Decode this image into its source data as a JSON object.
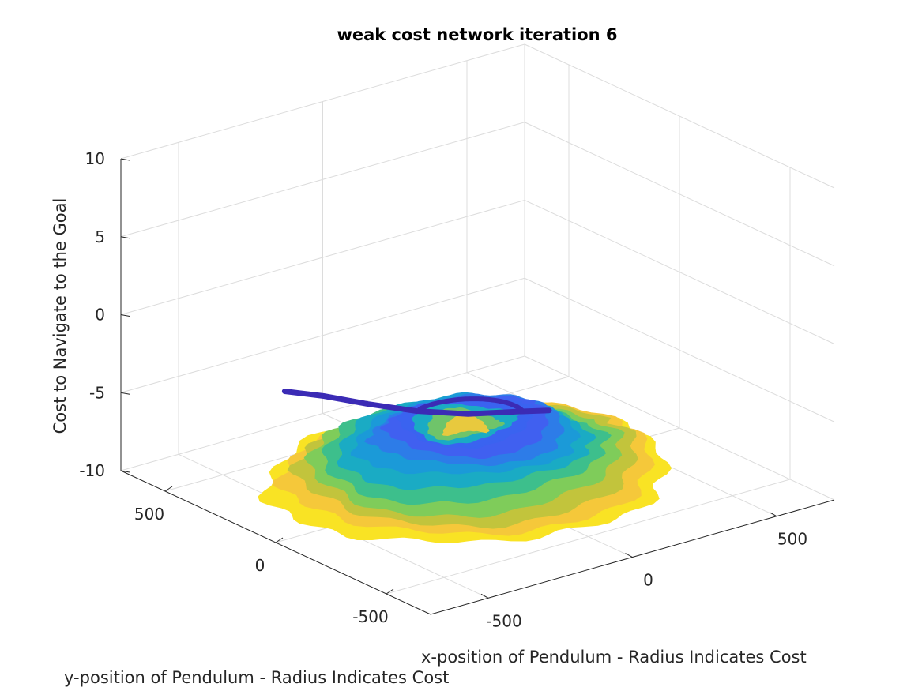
{
  "chart_data": {
    "type": "surface3d",
    "title": "weak cost network iteration 6",
    "xlabel": "x-position of Pendulum - Radius Indicates Cost",
    "ylabel": "y-position of Pendulum - Radius Indicates Cost",
    "zlabel": "Cost to Navigate to the Goal",
    "xlim": [
      -700,
      700
    ],
    "ylim": [
      -700,
      700
    ],
    "zlim": [
      -10,
      10
    ],
    "x_ticks": [
      "-500",
      "0",
      "500"
    ],
    "y_ticks": [
      "-500",
      "0",
      "500"
    ],
    "z_ticks": [
      "-10",
      "-5",
      "0",
      "5",
      "10"
    ],
    "grid": true,
    "colormap": "parula",
    "surface": {
      "rings": [
        {
          "radius": 540,
          "z": -9.6,
          "color": "#f9e324"
        },
        {
          "radius": 500,
          "z": -9.2,
          "color": "#f5c83a"
        },
        {
          "radius": 460,
          "z": -8.8,
          "color": "#c2c43c"
        },
        {
          "radius": 420,
          "z": -8.4,
          "color": "#7fcc5a"
        },
        {
          "radius": 380,
          "z": -8.0,
          "color": "#3dbf8c"
        },
        {
          "radius": 340,
          "z": -7.6,
          "color": "#1aabc4"
        },
        {
          "radius": 300,
          "z": -7.2,
          "color": "#1b9ad8"
        },
        {
          "radius": 260,
          "z": -6.8,
          "color": "#2d7ce8"
        },
        {
          "radius": 220,
          "z": -6.4,
          "color": "#4060f0"
        },
        {
          "radius": 180,
          "z": -6.0,
          "color": "#3a63f0"
        },
        {
          "radius": 140,
          "z": -6.1,
          "color": "#1aabc4"
        },
        {
          "radius": 100,
          "z": -6.3,
          "color": "#6fc46a"
        },
        {
          "radius": 60,
          "z": -6.5,
          "color": "#e8c93e"
        }
      ],
      "spur_color": "#3b2bb5"
    }
  }
}
